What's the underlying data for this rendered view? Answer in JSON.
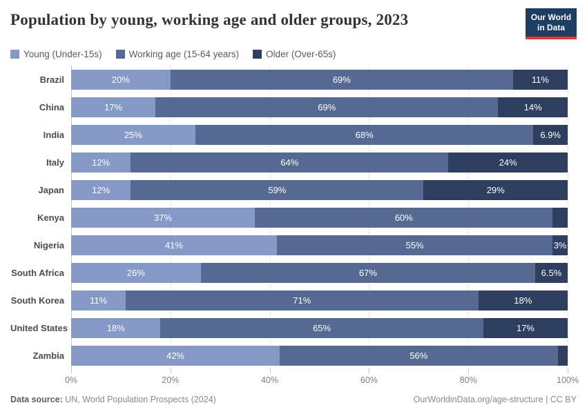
{
  "header": {
    "title": "Population by young, working age and older groups, 2023",
    "logo": {
      "line1": "Our World",
      "line2": "in Data"
    }
  },
  "legend": {
    "young_label": "Young (Under-15s)",
    "working_label": "Working age (15-64 years)",
    "older_label": "Older (Over-65s)"
  },
  "chart_data": {
    "type": "bar",
    "stacked": true,
    "orientation": "horizontal",
    "title": "Population by young, working age and older groups, 2023",
    "xlim": [
      0,
      100
    ],
    "x_ticks": [
      "0%",
      "20%",
      "40%",
      "60%",
      "80%",
      "100%"
    ],
    "x_tick_positions": [
      0,
      20,
      40,
      60,
      80,
      100
    ],
    "grid": "vertical-dashed",
    "legend_position": "top",
    "colors": {
      "young": "#8499c5",
      "working": "#556992",
      "older": "#2d3e5f"
    },
    "series_names": [
      "Young (Under-15s)",
      "Working age (15-64 years)",
      "Older (Over-65s)"
    ],
    "rows": [
      {
        "country": "Brazil",
        "young": 20,
        "working": 69,
        "older": 11,
        "young_label": "20%",
        "working_label": "69%",
        "older_label": "11%"
      },
      {
        "country": "China",
        "young": 17,
        "working": 69,
        "older": 14,
        "young_label": "17%",
        "working_label": "69%",
        "older_label": "14%"
      },
      {
        "country": "India",
        "young": 25,
        "working": 68,
        "older": 6.9,
        "young_label": "25%",
        "working_label": "68%",
        "older_label": "6.9%"
      },
      {
        "country": "Italy",
        "young": 12,
        "working": 64,
        "older": 24,
        "young_label": "12%",
        "working_label": "64%",
        "older_label": "24%"
      },
      {
        "country": "Japan",
        "young": 12,
        "working": 59,
        "older": 29,
        "young_label": "12%",
        "working_label": "59%",
        "older_label": "29%"
      },
      {
        "country": "Kenya",
        "young": 37,
        "working": 60,
        "older": 3,
        "young_label": "37%",
        "working_label": "60%",
        "older_label": ""
      },
      {
        "country": "Nigeria",
        "young": 41,
        "working": 55,
        "older": 3,
        "young_label": "41%",
        "working_label": "55%",
        "older_label": "3%"
      },
      {
        "country": "South Africa",
        "young": 26,
        "working": 67,
        "older": 6.5,
        "young_label": "26%",
        "working_label": "67%",
        "older_label": "6.5%"
      },
      {
        "country": "South Korea",
        "young": 11,
        "working": 71,
        "older": 18,
        "young_label": "11%",
        "working_label": "71%",
        "older_label": "18%"
      },
      {
        "country": "United States",
        "young": 18,
        "working": 65,
        "older": 17,
        "young_label": "18%",
        "working_label": "65%",
        "older_label": "17%"
      },
      {
        "country": "Zambia",
        "young": 42,
        "working": 56,
        "older": 2,
        "young_label": "42%",
        "working_label": "56%",
        "older_label": ""
      }
    ]
  },
  "footer": {
    "source_label": "Data source:",
    "source_text": " UN, World Population Prospects (2024)",
    "credit": "OurWorldinData.org/age-structure | CC BY"
  }
}
